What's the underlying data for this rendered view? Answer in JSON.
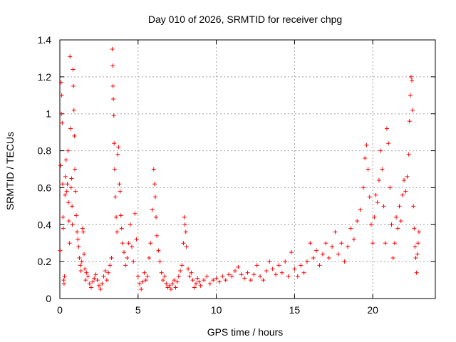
{
  "chart_data": {
    "type": "scatter",
    "title": "Day 010 of 2026, SRMTID for receiver chpg",
    "xlabel": "GPS time / hours",
    "ylabel": "SRMTID / TECUs",
    "xlim": [
      0,
      24
    ],
    "ylim": [
      0,
      1.4
    ],
    "xticks": [
      0,
      5,
      10,
      15,
      20
    ],
    "xtick_labels": [
      "0",
      "5",
      "10",
      "15",
      "20"
    ],
    "yticks": [
      0,
      0.2,
      0.4,
      0.6,
      0.8,
      1,
      1.2,
      1.4
    ],
    "ytick_labels": [
      "0",
      "0.2",
      "0.4",
      "0.6",
      "0.8",
      "1",
      "1.2",
      "1.4"
    ],
    "grid": true,
    "marker": "+",
    "color": "#ff0000",
    "series": [
      {
        "name": "SRMTID",
        "points": [
          [
            0.02,
            0.26
          ],
          [
            0.05,
            0.72
          ],
          [
            0.08,
            1.17
          ],
          [
            0.1,
            1.0
          ],
          [
            0.12,
            1.1
          ],
          [
            0.15,
            0.95
          ],
          [
            0.18,
            0.62
          ],
          [
            0.2,
            0.44
          ],
          [
            0.22,
            0.38
          ],
          [
            0.25,
            0.1
          ],
          [
            0.27,
            0.08
          ],
          [
            0.3,
            0.12
          ],
          [
            0.33,
            0.56
          ],
          [
            0.36,
            0.66
          ],
          [
            0.4,
            0.75
          ],
          [
            0.44,
            0.58
          ],
          [
            0.48,
            0.62
          ],
          [
            0.52,
            0.8
          ],
          [
            0.55,
            0.52
          ],
          [
            0.58,
            0.42
          ],
          [
            0.62,
            0.3
          ],
          [
            0.65,
            1.31
          ],
          [
            0.68,
            0.92
          ],
          [
            0.72,
            0.6
          ],
          [
            0.75,
            0.65
          ],
          [
            0.78,
            0.5
          ],
          [
            0.8,
            0.4
          ],
          [
            0.84,
            1.24
          ],
          [
            0.87,
            1.15
          ],
          [
            0.9,
            1.02
          ],
          [
            0.93,
            0.88
          ],
          [
            0.96,
            0.7
          ],
          [
            1.0,
            0.58
          ],
          [
            1.05,
            0.45
          ],
          [
            1.1,
            0.36
          ],
          [
            1.15,
            0.32
          ],
          [
            1.2,
            0.28
          ],
          [
            1.25,
            0.22
          ],
          [
            1.3,
            0.18
          ],
          [
            1.35,
            0.15
          ],
          [
            1.4,
            0.2
          ],
          [
            1.45,
            0.38
          ],
          [
            1.5,
            0.36
          ],
          [
            1.55,
            0.24
          ],
          [
            1.6,
            0.16
          ],
          [
            1.65,
            0.1
          ],
          [
            1.7,
            0.14
          ],
          [
            1.8,
            0.12
          ],
          [
            1.9,
            0.08
          ],
          [
            2.0,
            0.06
          ],
          [
            2.1,
            0.09
          ],
          [
            2.2,
            0.11
          ],
          [
            2.3,
            0.13
          ],
          [
            2.4,
            0.1
          ],
          [
            2.5,
            0.07
          ],
          [
            2.6,
            0.05
          ],
          [
            2.7,
            0.08
          ],
          [
            2.8,
            0.12
          ],
          [
            2.9,
            0.15
          ],
          [
            3.0,
            0.1
          ],
          [
            3.1,
            0.14
          ],
          [
            3.2,
            0.18
          ],
          [
            3.3,
            0.22
          ],
          [
            3.35,
            1.35
          ],
          [
            3.38,
            1.26
          ],
          [
            3.4,
            1.15
          ],
          [
            3.42,
            1.08
          ],
          [
            3.45,
            0.99
          ],
          [
            3.47,
            0.84
          ],
          [
            3.5,
            0.7
          ],
          [
            3.55,
            0.55
          ],
          [
            3.6,
            0.44
          ],
          [
            3.65,
            0.36
          ],
          [
            3.7,
            0.78
          ],
          [
            3.75,
            0.82
          ],
          [
            3.8,
            0.62
          ],
          [
            3.85,
            0.58
          ],
          [
            3.9,
            0.45
          ],
          [
            3.95,
            0.38
          ],
          [
            4.0,
            0.3
          ],
          [
            4.1,
            0.25
          ],
          [
            4.2,
            0.18
          ],
          [
            4.3,
            0.22
          ],
          [
            4.4,
            0.3
          ],
          [
            4.5,
            0.4
          ],
          [
            4.6,
            0.28
          ],
          [
            4.7,
            0.2
          ],
          [
            4.8,
            0.46
          ],
          [
            4.9,
            0.32
          ],
          [
            5.0,
            0.12
          ],
          [
            5.1,
            0.08
          ],
          [
            5.2,
            0.05
          ],
          [
            5.3,
            0.09
          ],
          [
            5.4,
            0.14
          ],
          [
            5.5,
            0.1
          ],
          [
            5.6,
            0.12
          ],
          [
            5.7,
            0.22
          ],
          [
            5.8,
            0.3
          ],
          [
            5.9,
            0.48
          ],
          [
            6.0,
            0.7
          ],
          [
            6.05,
            0.62
          ],
          [
            6.1,
            0.55
          ],
          [
            6.15,
            0.44
          ],
          [
            6.2,
            0.34
          ],
          [
            6.3,
            0.26
          ],
          [
            6.4,
            0.2
          ],
          [
            6.5,
            0.14
          ],
          [
            6.6,
            0.1
          ],
          [
            6.7,
            0.12
          ],
          [
            6.8,
            0.08
          ],
          [
            6.9,
            0.06
          ],
          [
            7.0,
            0.07
          ],
          [
            7.1,
            0.05
          ],
          [
            7.2,
            0.08
          ],
          [
            7.3,
            0.1
          ],
          [
            7.4,
            0.06
          ],
          [
            7.5,
            0.09
          ],
          [
            7.6,
            0.12
          ],
          [
            7.7,
            0.15
          ],
          [
            7.8,
            0.18
          ],
          [
            7.9,
            0.3
          ],
          [
            7.95,
            0.44
          ],
          [
            8.0,
            0.4
          ],
          [
            8.05,
            0.36
          ],
          [
            8.1,
            0.28
          ],
          [
            8.2,
            0.16
          ],
          [
            8.3,
            0.12
          ],
          [
            8.4,
            0.14
          ],
          [
            8.5,
            0.1
          ],
          [
            8.6,
            0.06
          ],
          [
            8.7,
            0.08
          ],
          [
            8.8,
            0.11
          ],
          [
            8.9,
            0.09
          ],
          [
            9.0,
            0.07
          ],
          [
            9.2,
            0.1
          ],
          [
            9.4,
            0.12
          ],
          [
            9.6,
            0.08
          ],
          [
            9.8,
            0.1
          ],
          [
            10.0,
            0.11
          ],
          [
            10.2,
            0.09
          ],
          [
            10.4,
            0.12
          ],
          [
            10.6,
            0.1
          ],
          [
            10.8,
            0.13
          ],
          [
            11.0,
            0.12
          ],
          [
            11.2,
            0.15
          ],
          [
            11.4,
            0.17
          ],
          [
            11.6,
            0.13
          ],
          [
            11.8,
            0.11
          ],
          [
            12.0,
            0.14
          ],
          [
            12.2,
            0.1
          ],
          [
            12.4,
            0.13
          ],
          [
            12.6,
            0.18
          ],
          [
            12.8,
            0.12
          ],
          [
            13.0,
            0.1
          ],
          [
            13.2,
            0.15
          ],
          [
            13.4,
            0.2
          ],
          [
            13.6,
            0.16
          ],
          [
            13.8,
            0.13
          ],
          [
            14.0,
            0.18
          ],
          [
            14.2,
            0.14
          ],
          [
            14.4,
            0.2
          ],
          [
            14.6,
            0.12
          ],
          [
            14.8,
            0.25
          ],
          [
            15.0,
            0.16
          ],
          [
            15.2,
            0.12
          ],
          [
            15.4,
            0.18
          ],
          [
            15.6,
            0.14
          ],
          [
            15.8,
            0.2
          ],
          [
            16.0,
            0.3
          ],
          [
            16.2,
            0.22
          ],
          [
            16.4,
            0.26
          ],
          [
            16.6,
            0.18
          ],
          [
            16.8,
            0.24
          ],
          [
            17.0,
            0.3
          ],
          [
            17.2,
            0.22
          ],
          [
            17.4,
            0.28
          ],
          [
            17.6,
            0.36
          ],
          [
            17.8,
            0.24
          ],
          [
            18.0,
            0.3
          ],
          [
            18.2,
            0.2
          ],
          [
            18.4,
            0.28
          ],
          [
            18.6,
            0.38
          ],
          [
            18.8,
            0.32
          ],
          [
            19.0,
            0.42
          ],
          [
            19.2,
            0.48
          ],
          [
            19.4,
            0.6
          ],
          [
            19.5,
            0.76
          ],
          [
            19.6,
            0.83
          ],
          [
            19.7,
            0.7
          ],
          [
            19.8,
            0.55
          ],
          [
            19.9,
            0.4
          ],
          [
            20.0,
            0.3
          ],
          [
            20.1,
            0.44
          ],
          [
            20.2,
            0.56
          ],
          [
            20.3,
            0.52
          ],
          [
            20.4,
            0.64
          ],
          [
            20.5,
            0.8
          ],
          [
            20.6,
            0.7
          ],
          [
            20.7,
            0.5
          ],
          [
            20.8,
            0.3
          ],
          [
            20.9,
            0.92
          ],
          [
            21.0,
            0.84
          ],
          [
            21.1,
            0.6
          ],
          [
            21.2,
            0.4
          ],
          [
            21.3,
            0.22
          ],
          [
            21.4,
            0.3
          ],
          [
            21.5,
            0.44
          ],
          [
            21.6,
            0.38
          ],
          [
            21.7,
            0.5
          ],
          [
            21.8,
            0.42
          ],
          [
            21.9,
            0.56
          ],
          [
            22.0,
            0.64
          ],
          [
            22.1,
            0.58
          ],
          [
            22.2,
            0.66
          ],
          [
            22.3,
            0.78
          ],
          [
            22.35,
            0.96
          ],
          [
            22.4,
            1.1
          ],
          [
            22.45,
            1.2
          ],
          [
            22.5,
            1.18
          ],
          [
            22.55,
            1.02
          ],
          [
            22.6,
            0.5
          ],
          [
            22.65,
            0.38
          ],
          [
            22.7,
            0.28
          ],
          [
            22.75,
            0.22
          ],
          [
            22.8,
            0.14
          ],
          [
            22.85,
            0.24
          ],
          [
            22.9,
            0.3
          ],
          [
            22.95,
            0.36
          ]
        ]
      }
    ]
  }
}
